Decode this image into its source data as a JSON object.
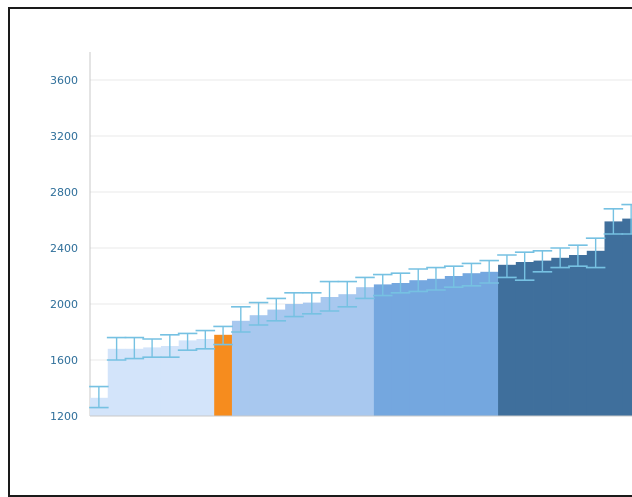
{
  "chart_data": {
    "type": "bar",
    "title": "",
    "xlabel": "",
    "ylabel": "",
    "ylim": [
      1200,
      3800
    ],
    "yticks": [
      1200,
      1600,
      2000,
      2400,
      2800,
      3200,
      3600
    ],
    "grid": true,
    "legend": "none",
    "bar_gap": 0,
    "error_bars": true,
    "colors": {
      "tier1": "#d3e4fa",
      "tier2": "#a8c8ef",
      "tier3": "#74a7df",
      "tier4": "#3f6f9c",
      "highlight": "#f68c1e",
      "error": "#76c1e2",
      "grid": "#e9e9e9",
      "axis": "#c8c8c8",
      "tick_text": "#2f6f9a"
    },
    "bars": [
      {
        "value": 1330,
        "low": 1260,
        "high": 1410,
        "group": "tier1"
      },
      {
        "value": 1680,
        "low": 1600,
        "high": 1760,
        "group": "tier1"
      },
      {
        "value": 1680,
        "low": 1610,
        "high": 1760,
        "group": "tier1"
      },
      {
        "value": 1690,
        "low": 1620,
        "high": 1750,
        "group": "tier1"
      },
      {
        "value": 1700,
        "low": 1620,
        "high": 1780,
        "group": "tier1"
      },
      {
        "value": 1740,
        "low": 1670,
        "high": 1790,
        "group": "tier1"
      },
      {
        "value": 1750,
        "low": 1680,
        "high": 1810,
        "group": "tier1"
      },
      {
        "value": 1780,
        "low": 1710,
        "high": 1840,
        "group": "highlight"
      },
      {
        "value": 1880,
        "low": 1800,
        "high": 1980,
        "group": "tier2"
      },
      {
        "value": 1920,
        "low": 1850,
        "high": 2010,
        "group": "tier2"
      },
      {
        "value": 1960,
        "low": 1880,
        "high": 2040,
        "group": "tier2"
      },
      {
        "value": 2000,
        "low": 1910,
        "high": 2080,
        "group": "tier2"
      },
      {
        "value": 2010,
        "low": 1930,
        "high": 2080,
        "group": "tier2"
      },
      {
        "value": 2050,
        "low": 1950,
        "high": 2160,
        "group": "tier2"
      },
      {
        "value": 2070,
        "low": 1980,
        "high": 2160,
        "group": "tier2"
      },
      {
        "value": 2120,
        "low": 2040,
        "high": 2190,
        "group": "tier2"
      },
      {
        "value": 2140,
        "low": 2060,
        "high": 2210,
        "group": "tier3"
      },
      {
        "value": 2150,
        "low": 2080,
        "high": 2220,
        "group": "tier3"
      },
      {
        "value": 2170,
        "low": 2090,
        "high": 2250,
        "group": "tier3"
      },
      {
        "value": 2180,
        "low": 2100,
        "high": 2260,
        "group": "tier3"
      },
      {
        "value": 2200,
        "low": 2120,
        "high": 2270,
        "group": "tier3"
      },
      {
        "value": 2220,
        "low": 2130,
        "high": 2290,
        "group": "tier3"
      },
      {
        "value": 2230,
        "low": 2150,
        "high": 2310,
        "group": "tier3"
      },
      {
        "value": 2280,
        "low": 2190,
        "high": 2350,
        "group": "tier4"
      },
      {
        "value": 2300,
        "low": 2170,
        "high": 2370,
        "group": "tier4"
      },
      {
        "value": 2310,
        "low": 2230,
        "high": 2380,
        "group": "tier4"
      },
      {
        "value": 2330,
        "low": 2260,
        "high": 2400,
        "group": "tier4"
      },
      {
        "value": 2350,
        "low": 2270,
        "high": 2420,
        "group": "tier4"
      },
      {
        "value": 2380,
        "low": 2260,
        "high": 2470,
        "group": "tier4"
      },
      {
        "value": 2590,
        "low": 2500,
        "high": 2680,
        "group": "tier4"
      },
      {
        "value": 2610,
        "low": 2500,
        "high": 2710,
        "group": "tier4"
      }
    ]
  }
}
